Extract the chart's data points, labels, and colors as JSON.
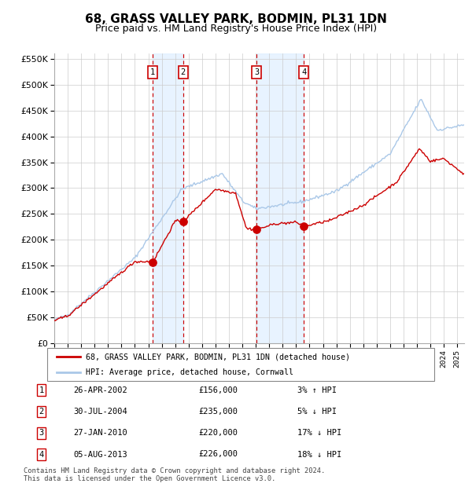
{
  "title": "68, GRASS VALLEY PARK, BODMIN, PL31 1DN",
  "subtitle": "Price paid vs. HM Land Registry's House Price Index (HPI)",
  "footer1": "Contains HM Land Registry data © Crown copyright and database right 2024.",
  "footer2": "This data is licensed under the Open Government Licence v3.0.",
  "legend_property": "68, GRASS VALLEY PARK, BODMIN, PL31 1DN (detached house)",
  "legend_hpi": "HPI: Average price, detached house, Cornwall",
  "transactions": [
    {
      "num": 1,
      "date": "26-APR-2002",
      "price": 156000,
      "pct": "3%",
      "dir": "↑",
      "year": 2002.32
    },
    {
      "num": 2,
      "date": "30-JUL-2004",
      "price": 235000,
      "pct": "5%",
      "dir": "↓",
      "year": 2004.58
    },
    {
      "num": 3,
      "date": "27-JAN-2010",
      "price": 220000,
      "pct": "17%",
      "dir": "↓",
      "year": 2010.07
    },
    {
      "num": 4,
      "date": "05-AUG-2013",
      "price": 226000,
      "pct": "18%",
      "dir": "↓",
      "year": 2013.59
    }
  ],
  "ylim": [
    0,
    560000
  ],
  "xlim_start": 1995.0,
  "xlim_end": 2025.5,
  "background_color": "#ffffff",
  "grid_color": "#cccccc",
  "hpi_line_color": "#aac8e8",
  "property_line_color": "#cc0000",
  "dashed_line_color": "#cc0000",
  "shade_color": "#ddeeff",
  "marker_color": "#cc0000",
  "box_color": "#cc0000",
  "title_fontsize": 11,
  "subtitle_fontsize": 9
}
